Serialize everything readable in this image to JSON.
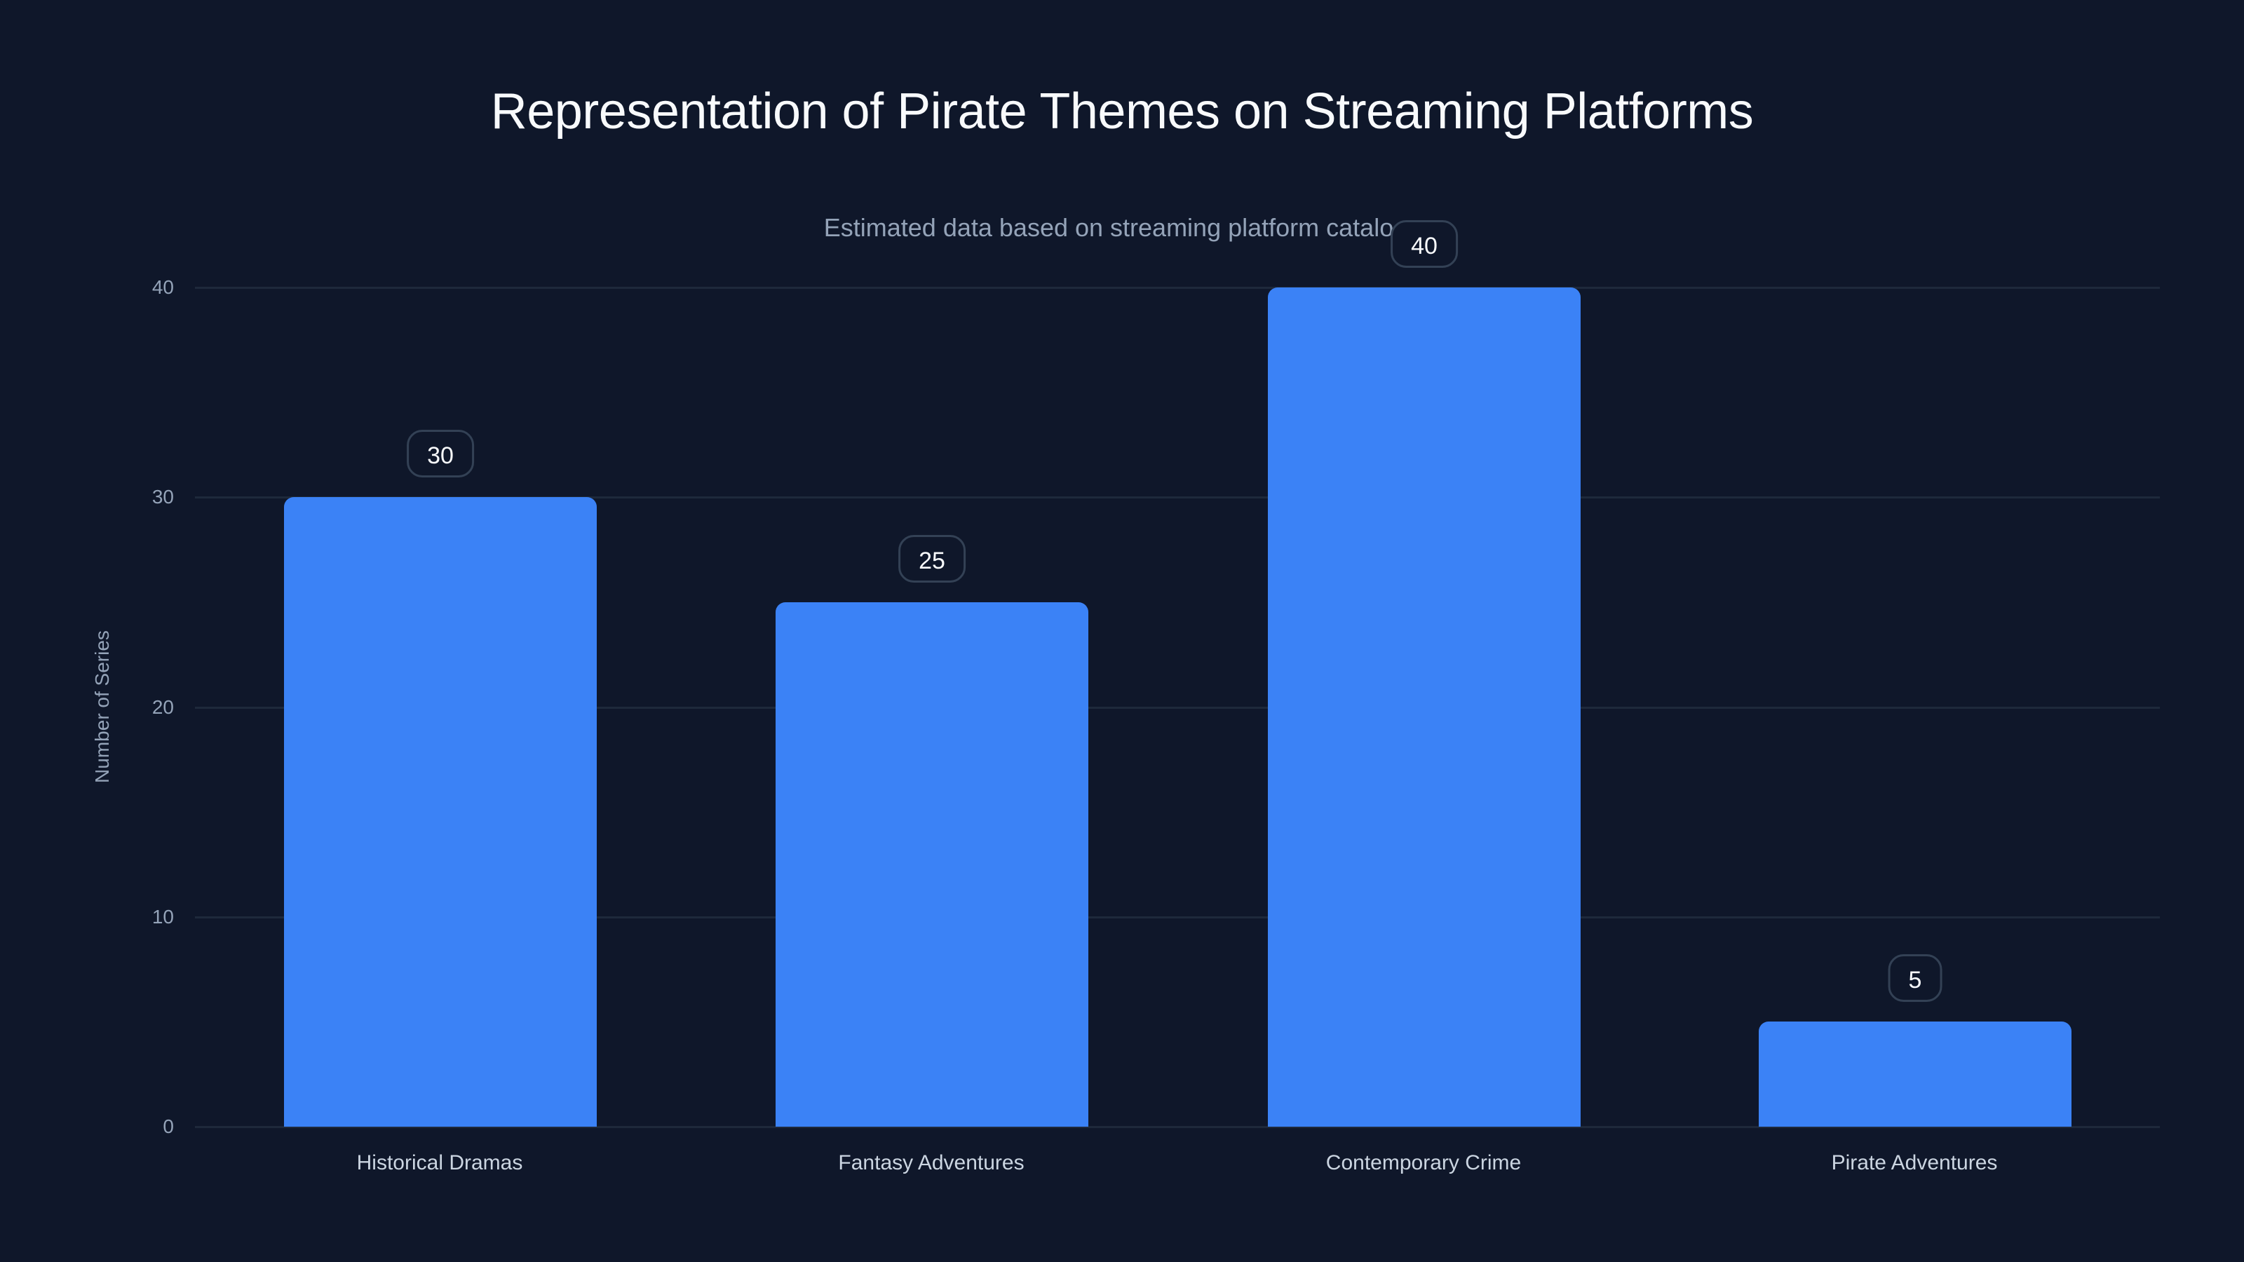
{
  "header": {
    "title": "Representation of Pirate Themes on Streaming Platforms",
    "subtitle": "Estimated data based on streaming platform catalogs"
  },
  "axes": {
    "ylabel": "Number of Series",
    "yticks": [
      "0",
      "10",
      "20",
      "30",
      "40"
    ],
    "xticks": [
      "Historical Dramas",
      "Fantasy Adventures",
      "Contemporary Crime",
      "Pirate Adventures"
    ]
  },
  "bars": [
    {
      "category": "Historical Dramas",
      "value": 30,
      "label": "30"
    },
    {
      "category": "Fantasy Adventures",
      "value": 25,
      "label": "25"
    },
    {
      "category": "Contemporary Crime",
      "value": 40,
      "label": "40"
    },
    {
      "category": "Pirate Adventures",
      "value": 5,
      "label": "5"
    }
  ],
  "colors": {
    "background": "#0f172a",
    "bar": "#3b82f6",
    "grid": "#1e293b",
    "label_border": "#334155"
  },
  "chart_data": {
    "type": "bar",
    "title": "Representation of Pirate Themes on Streaming Platforms",
    "subtitle": "Estimated data based on streaming platform catalogs",
    "categories": [
      "Historical Dramas",
      "Fantasy Adventures",
      "Contemporary Crime",
      "Pirate Adventures"
    ],
    "values": [
      30,
      25,
      40,
      5
    ],
    "xlabel": "",
    "ylabel": "Number of Series",
    "ylim": [
      0,
      40
    ],
    "yticks": [
      0,
      10,
      20,
      30,
      40
    ],
    "grid": true,
    "legend": null,
    "data_labels": true
  }
}
